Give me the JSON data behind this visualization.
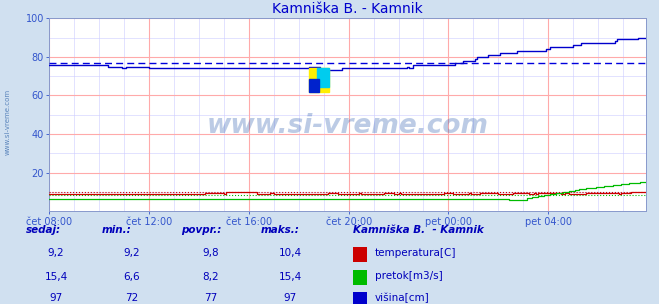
{
  "title": "Kamniška B. - Kamnik",
  "title_color": "#0000cc",
  "bg_color": "#d0e0f0",
  "plot_bg_color": "#ffffff",
  "grid_color_major": "#ffaaaa",
  "grid_color_minor": "#ccccff",
  "xlim": [
    0,
    287
  ],
  "ylim": [
    0,
    100
  ],
  "yticks": [
    20,
    40,
    60,
    80,
    100
  ],
  "xtick_labels": [
    "čet 08:00",
    "čet 12:00",
    "čet 16:00",
    "čet 20:00",
    "pet 00:00",
    "pet 04:00"
  ],
  "xtick_positions": [
    0,
    48,
    96,
    144,
    192,
    240
  ],
  "watermark_text": "www.si-vreme.com",
  "watermark_color": "#2255aa",
  "watermark_alpha": 0.3,
  "avg_line_value": 77,
  "avg_line_color": "#0000dd",
  "temperatura_color": "#cc0000",
  "pretok_color": "#00bb00",
  "visina_color": "#0000cc",
  "n_points": 288,
  "legend_title": "Kamniška B.  - Kamnik",
  "legend_items": [
    {
      "label": "temperatura[C]",
      "color": "#cc0000"
    },
    {
      "label": "pretok[m3/s]",
      "color": "#00bb00"
    },
    {
      "label": "višina[cm]",
      "color": "#0000cc"
    }
  ],
  "table_headers": [
    "sedaj:",
    "min.:",
    "povpr.:",
    "maks.:"
  ],
  "table_rows": [
    [
      "9,2",
      "9,2",
      "9,8",
      "10,4"
    ],
    [
      "15,4",
      "6,6",
      "8,2",
      "15,4"
    ],
    [
      "97",
      "72",
      "77",
      "97"
    ]
  ],
  "table_color": "#0000bb",
  "sidebar_text": "www.si-vreme.com",
  "sidebar_color": "#3366aa"
}
